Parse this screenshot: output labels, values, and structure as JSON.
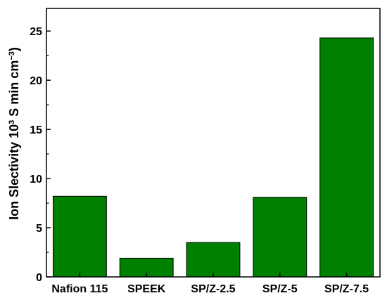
{
  "chart_data": {
    "type": "bar",
    "categories": [
      "Nafion 115",
      "SPEEK",
      "SP/Z-2.5",
      "SP/Z-5",
      "SP/Z-7.5"
    ],
    "values": [
      8.2,
      1.9,
      3.5,
      8.1,
      24.3
    ],
    "ylabel": {
      "main": "Ion Slectivity 10",
      "sup1": "3",
      "mid": " S min cm",
      "sup2": "−3",
      "end": ")"
    },
    "xlabel": "",
    "ylim": [
      0,
      27.3
    ],
    "yticks": [
      0,
      5,
      10,
      15,
      20,
      25
    ],
    "bar_color": "#008000",
    "bar_edge_color": "#000000",
    "grid": false,
    "legend": "none"
  }
}
